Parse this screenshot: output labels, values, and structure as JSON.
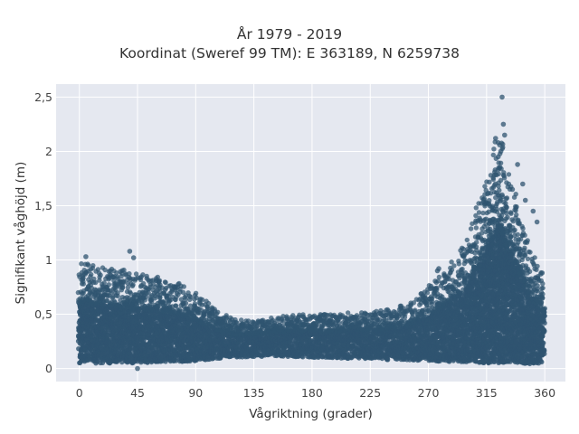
{
  "chart_data": {
    "type": "scatter",
    "title": "År 1979 - 2019",
    "subtitle": "Koordinat (Sweref 99 TM): E 363189, N 6259738",
    "xlabel": "Vågriktning (grader)",
    "ylabel": "Signifikant våghöjd (m)",
    "xlim": [
      -18,
      376
    ],
    "ylim": [
      -0.12,
      2.62
    ],
    "x_ticks": [
      0,
      45,
      90,
      135,
      180,
      225,
      270,
      315,
      360
    ],
    "x_tick_labels": [
      "0",
      "45",
      "90",
      "135",
      "180",
      "225",
      "270",
      "315",
      "360"
    ],
    "y_ticks": [
      0,
      0.5,
      1,
      1.5,
      2,
      2.5
    ],
    "y_tick_labels": [
      "0",
      "0,5",
      "1",
      "1,5",
      "2",
      "2,5"
    ],
    "grid": true,
    "background_color": "#e5e8f0",
    "marker_color": "#2f5470",
    "envelope": {
      "direction_deg": [
        0,
        15,
        30,
        45,
        60,
        75,
        90,
        105,
        120,
        135,
        150,
        165,
        180,
        195,
        210,
        225,
        240,
        255,
        270,
        285,
        300,
        310,
        320,
        325,
        330,
        340,
        350,
        360
      ],
      "min_height_m": [
        0.04,
        0.05,
        0.05,
        0.05,
        0.06,
        0.06,
        0.07,
        0.09,
        0.1,
        0.11,
        0.11,
        0.11,
        0.1,
        0.1,
        0.09,
        0.09,
        0.08,
        0.08,
        0.07,
        0.06,
        0.06,
        0.05,
        0.05,
        0.05,
        0.05,
        0.05,
        0.04,
        0.05
      ],
      "max_height_m": [
        0.98,
        0.95,
        0.92,
        0.88,
        0.85,
        0.8,
        0.7,
        0.55,
        0.45,
        0.44,
        0.47,
        0.5,
        0.5,
        0.5,
        0.52,
        0.52,
        0.55,
        0.6,
        0.75,
        0.95,
        1.2,
        1.6,
        2.0,
        2.25,
        1.9,
        1.5,
        1.05,
        0.85
      ]
    },
    "notable_points": [
      {
        "x": 327,
        "y": 2.5
      },
      {
        "x": 328,
        "y": 2.25
      },
      {
        "x": 329,
        "y": 2.15
      },
      {
        "x": 322,
        "y": 2.12
      },
      {
        "x": 324,
        "y": 2.08
      },
      {
        "x": 339,
        "y": 1.88
      },
      {
        "x": 324,
        "y": 1.95
      },
      {
        "x": 326,
        "y": 2.0
      },
      {
        "x": 327,
        "y": 1.6
      },
      {
        "x": 335,
        "y": 1.65
      },
      {
        "x": 343,
        "y": 1.7
      },
      {
        "x": 345,
        "y": 1.55
      },
      {
        "x": 351,
        "y": 1.45
      },
      {
        "x": 354,
        "y": 1.35
      },
      {
        "x": 297,
        "y": 1.1
      },
      {
        "x": 307,
        "y": 1.12
      },
      {
        "x": 277,
        "y": 0.9
      },
      {
        "x": 278,
        "y": 0.92
      },
      {
        "x": 39,
        "y": 1.08
      },
      {
        "x": 42,
        "y": 1.02
      },
      {
        "x": 5,
        "y": 1.03
      },
      {
        "x": 358,
        "y": 0.88
      },
      {
        "x": 45,
        "y": 0.0
      }
    ]
  }
}
